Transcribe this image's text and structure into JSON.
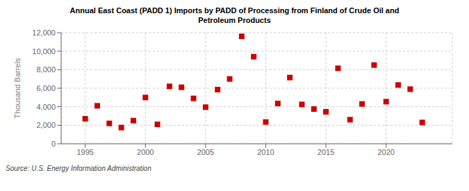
{
  "chart_data": {
    "type": "scatter",
    "title": "Annual East Coast (PADD 1) Imports by PADD of Processing from Finland of Crude Oil and\nPetroleum Products",
    "ylabel": "Thousand Barrels",
    "source": "Source: U.S. Energy Information Administration",
    "color": "#cc0000",
    "marker": "square",
    "x": [
      1995,
      1996,
      1997,
      1998,
      1999,
      2000,
      2001,
      2002,
      2003,
      2004,
      2005,
      2006,
      2007,
      2008,
      2009,
      2010,
      2011,
      2012,
      2013,
      2014,
      2015,
      2016,
      2017,
      2018,
      2019,
      2020,
      2021,
      2022,
      2023
    ],
    "values": [
      2700,
      4100,
      2200,
      1750,
      2500,
      5000,
      2100,
      6200,
      6100,
      4900,
      3950,
      5850,
      7000,
      11600,
      9400,
      2350,
      4350,
      7150,
      4250,
      3750,
      3450,
      8150,
      2600,
      4300,
      8500,
      4550,
      6350,
      5900,
      2300
    ],
    "xlim": [
      1993.0,
      2025.5
    ],
    "xticks": [
      1995,
      2000,
      2005,
      2010,
      2015,
      2020
    ],
    "ylim": [
      0,
      12000
    ],
    "yticks": [
      0,
      {
        "value": 2000,
        "label": "2,000"
      },
      {
        "value": 4000,
        "label": "4,000"
      },
      {
        "value": 6000,
        "label": "6,000"
      },
      {
        "value": 8000,
        "label": "8,000"
      },
      {
        "value": 10000,
        "label": "10,000"
      },
      {
        "value": 12000,
        "label": "12,000"
      }
    ],
    "grid": true
  }
}
